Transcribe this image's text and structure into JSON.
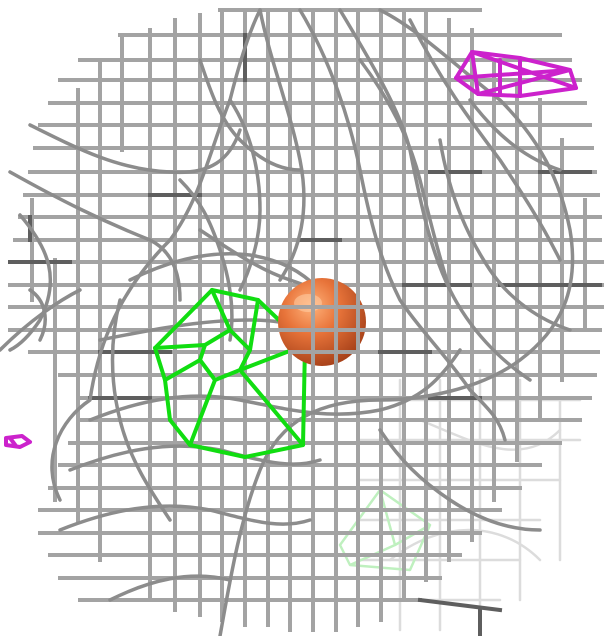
{
  "scene": {
    "background": "#ffffff",
    "lattice_color": "#9a9a9a",
    "lattice_dark_color": "#555555",
    "highlight_green": "#11dd11",
    "ligand_magenta": "#cc22cc",
    "sphere_color": "#e8743a"
  },
  "icons": {
    "sphere": "orange-sphere-atom",
    "green_cage": "green-wireframe-cage",
    "magenta_cage": "magenta-wireframe-cage"
  }
}
